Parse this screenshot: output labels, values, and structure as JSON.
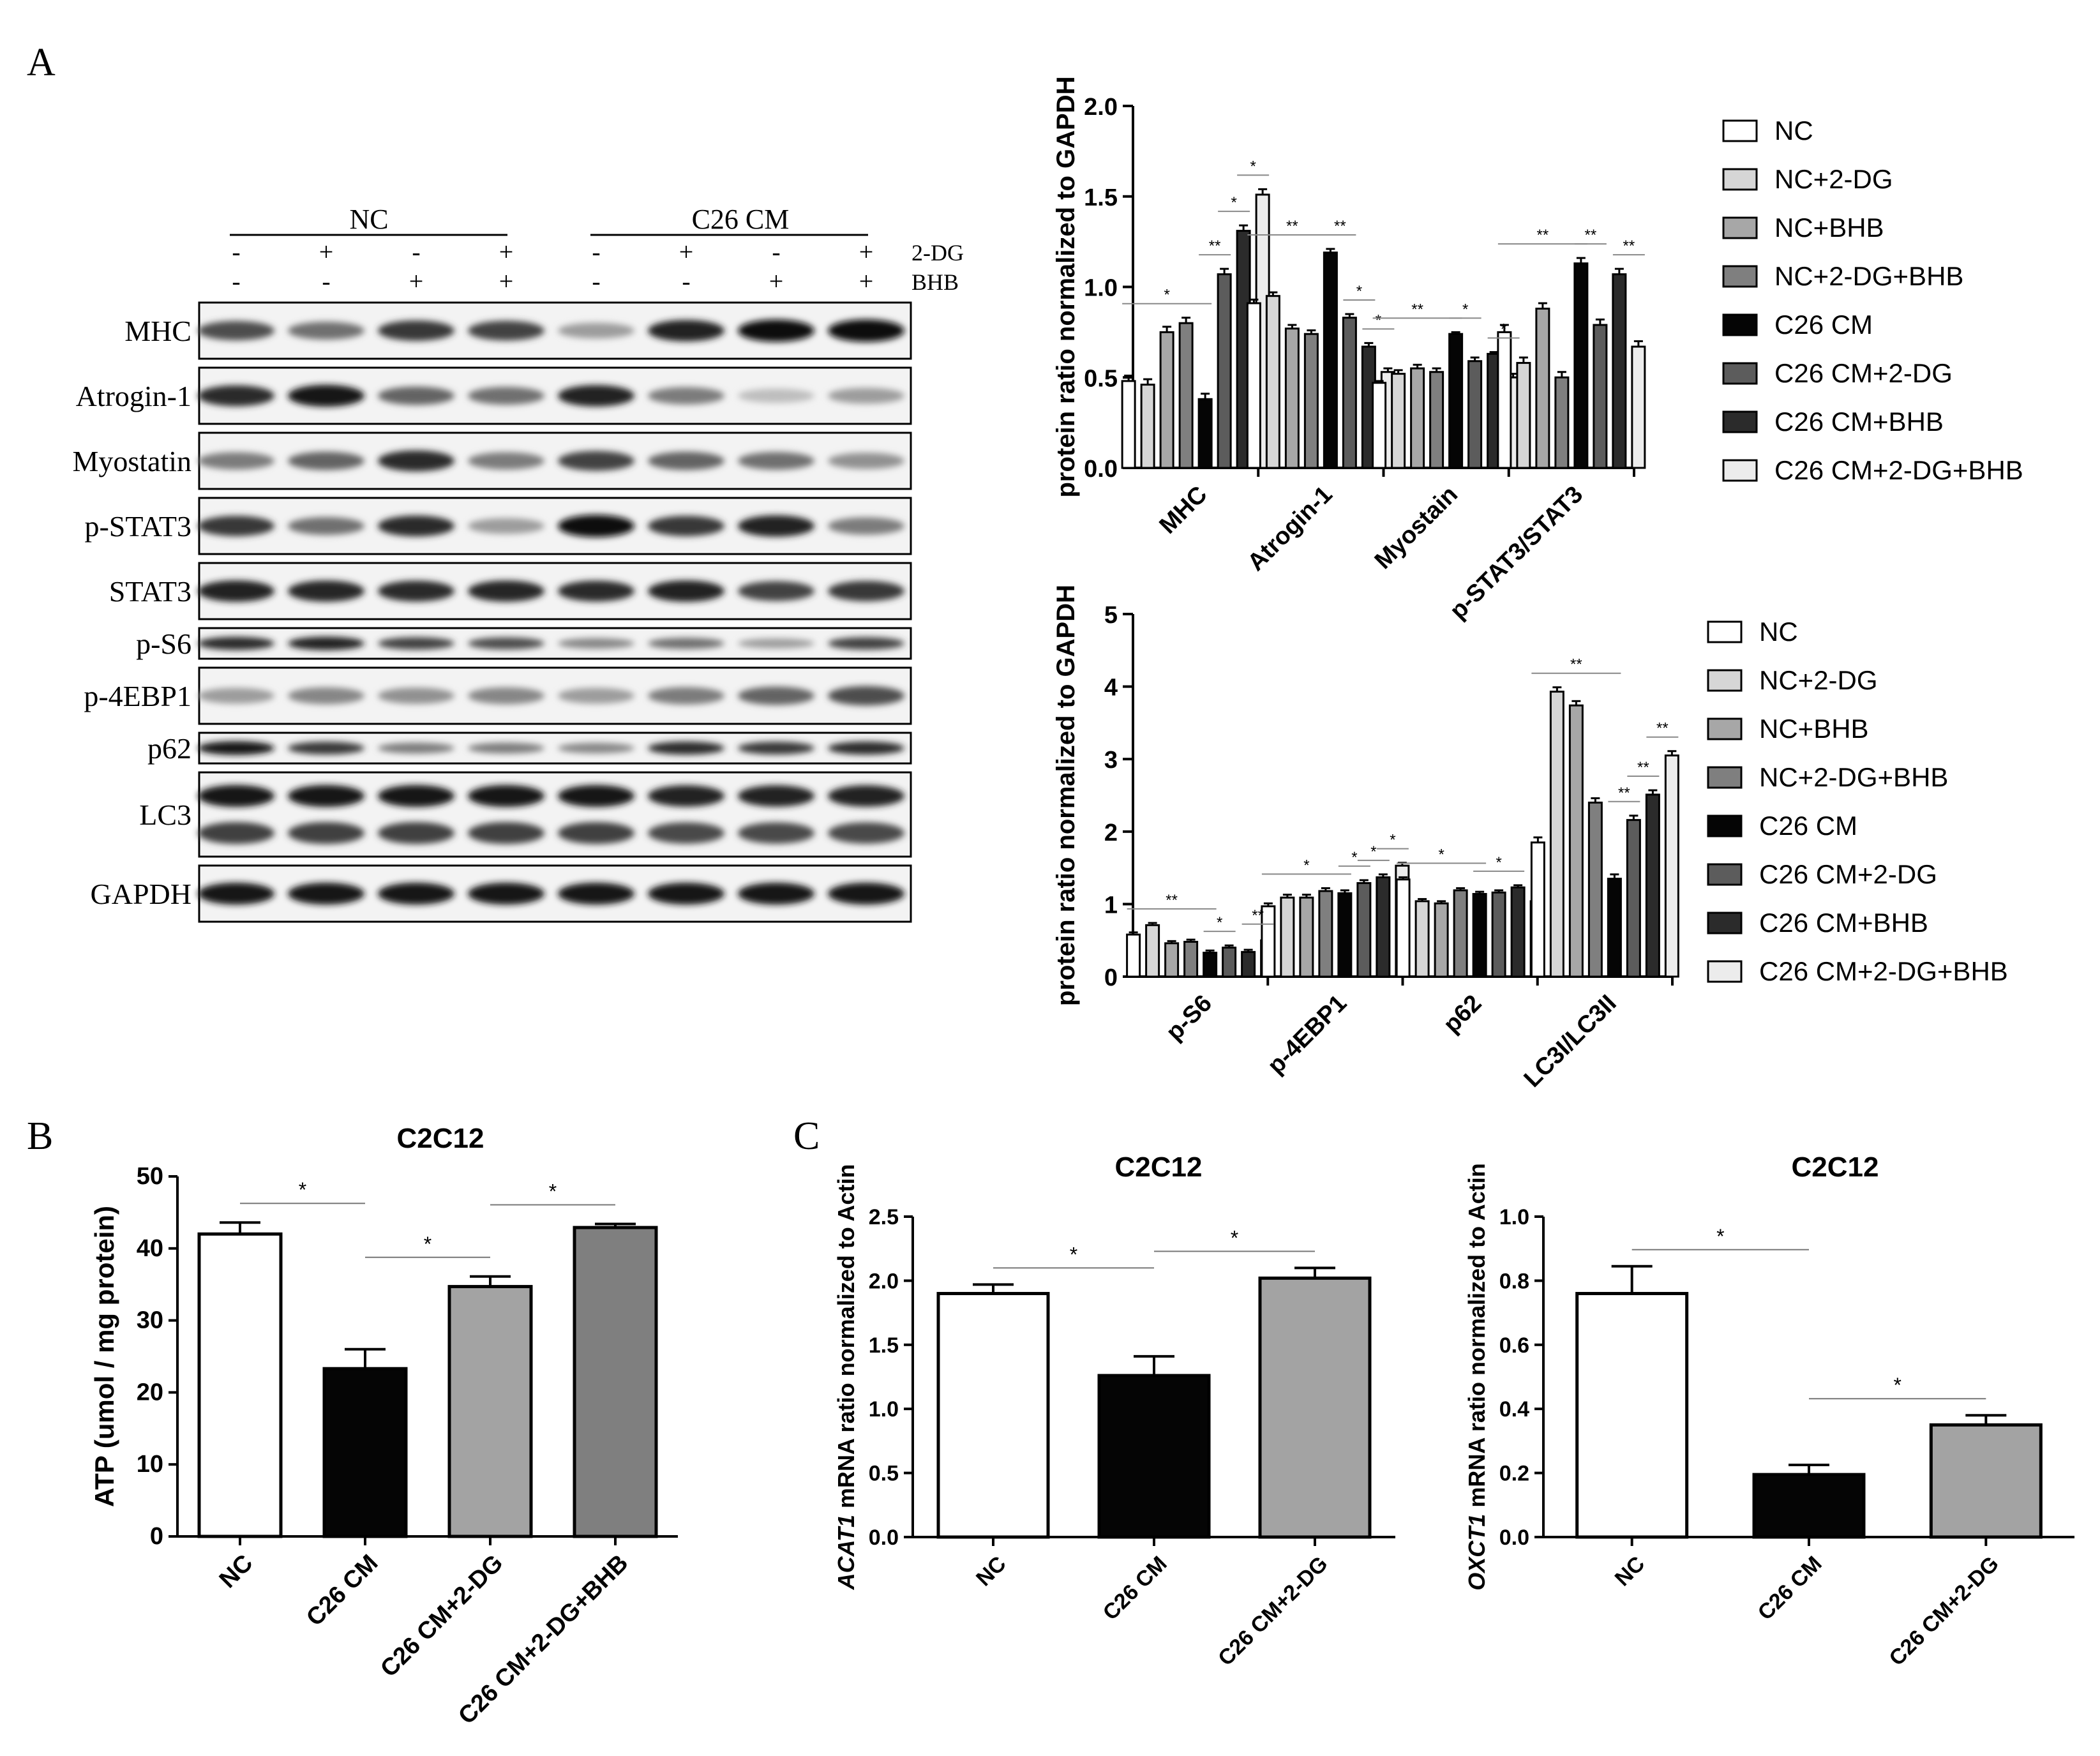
{
  "panels": {
    "a": "A",
    "b": "B",
    "c": "C"
  },
  "blot": {
    "groups": [
      "NC",
      "C26 CM"
    ],
    "treatments": [
      {
        "name": "2-DG",
        "signs": [
          "-",
          "+",
          "-",
          "+",
          "-",
          "+",
          "-",
          "+"
        ]
      },
      {
        "name": "BHB",
        "signs": [
          "-",
          "-",
          "+",
          "+",
          "-",
          "-",
          "+",
          "+"
        ]
      }
    ],
    "rows": [
      {
        "label": "MHC",
        "intensity": [
          0.7,
          0.55,
          0.8,
          0.75,
          0.35,
          0.9,
          0.98,
          1.0
        ],
        "height": 2
      },
      {
        "label": "Atrogin-1",
        "intensity": [
          0.85,
          0.95,
          0.6,
          0.55,
          0.9,
          0.5,
          0.2,
          0.35
        ],
        "height": 2
      },
      {
        "label": "Myostatin",
        "intensity": [
          0.5,
          0.6,
          0.85,
          0.5,
          0.75,
          0.6,
          0.55,
          0.4
        ],
        "height": 2
      },
      {
        "label": "p-STAT3",
        "intensity": [
          0.8,
          0.55,
          0.85,
          0.35,
          0.98,
          0.8,
          0.9,
          0.5
        ],
        "height": 2
      },
      {
        "label": "STAT3",
        "intensity": [
          0.9,
          0.88,
          0.85,
          0.88,
          0.85,
          0.9,
          0.75,
          0.8
        ],
        "height": 2
      },
      {
        "label": "p-S6",
        "intensity": [
          0.85,
          0.9,
          0.75,
          0.7,
          0.45,
          0.55,
          0.35,
          0.75
        ],
        "height": 1
      },
      {
        "label": "p-4EBP1",
        "intensity": [
          0.35,
          0.45,
          0.4,
          0.45,
          0.35,
          0.5,
          0.6,
          0.7
        ],
        "height": 2
      },
      {
        "label": "p62",
        "intensity": [
          0.95,
          0.8,
          0.5,
          0.5,
          0.45,
          0.85,
          0.8,
          0.85
        ],
        "height": 1
      },
      {
        "label": "LC3",
        "intensity": [
          0.95,
          0.95,
          0.95,
          0.95,
          0.95,
          0.9,
          0.9,
          0.9
        ],
        "height": 3
      },
      {
        "label": "GAPDH",
        "intensity": [
          0.95,
          0.95,
          0.95,
          0.95,
          0.95,
          0.95,
          0.95,
          0.95
        ],
        "height": 2
      }
    ]
  },
  "chart_data": [
    {
      "type": "bar",
      "panel": "A",
      "title": "",
      "ylabel": "protein ratio normalized to GAPDH",
      "ylim": [
        0,
        2.0
      ],
      "yticks": [
        "0.0",
        "0.5",
        "1.0",
        "1.5",
        "2.0"
      ],
      "categories": [
        "MHC",
        "Atrogin-1",
        "Myostain",
        "p-STAT3/STAT3"
      ],
      "series": [
        {
          "name": "NC",
          "color": "#ffffff",
          "values": [
            0.48,
            0.91,
            0.47,
            0.75
          ],
          "errors": [
            0.03,
            0.02,
            0.01,
            0.04
          ]
        },
        {
          "name": "NC+2-DG",
          "color": "#d6d6d6",
          "values": [
            0.46,
            0.95,
            0.52,
            0.58
          ],
          "errors": [
            0.03,
            0.02,
            0.02,
            0.03
          ]
        },
        {
          "name": "NC+BHB",
          "color": "#a7a7a7",
          "values": [
            0.75,
            0.77,
            0.55,
            0.88
          ],
          "errors": [
            0.03,
            0.02,
            0.02,
            0.03
          ]
        },
        {
          "name": "NC+2-DG+BHB",
          "color": "#7f7f7f",
          "values": [
            0.8,
            0.74,
            0.53,
            0.5
          ],
          "errors": [
            0.03,
            0.02,
            0.02,
            0.03
          ]
        },
        {
          "name": "C26 CM",
          "color": "#050505",
          "values": [
            0.38,
            1.19,
            0.74,
            1.13
          ],
          "errors": [
            0.03,
            0.02,
            0.01,
            0.03
          ]
        },
        {
          "name": "C26 CM+2-DG",
          "color": "#5c5c5c",
          "values": [
            1.07,
            0.83,
            0.59,
            0.79
          ],
          "errors": [
            0.03,
            0.02,
            0.02,
            0.03
          ]
        },
        {
          "name": "C26 CM+BHB",
          "color": "#2b2b2b",
          "values": [
            1.31,
            0.67,
            0.63,
            1.07
          ],
          "errors": [
            0.03,
            0.02,
            0.01,
            0.03
          ]
        },
        {
          "name": "C26 CM+2-DG+BHB",
          "color": "#ececec",
          "values": [
            1.51,
            0.53,
            0.5,
            0.67
          ],
          "errors": [
            0.03,
            0.02,
            0.02,
            0.03
          ]
        }
      ],
      "significance": [
        {
          "category": 0,
          "from": 0,
          "to": 4,
          "label": "*"
        },
        {
          "category": 0,
          "from": 4,
          "to": 5,
          "label": "**"
        },
        {
          "category": 0,
          "from": 5,
          "to": 6,
          "label": "*"
        },
        {
          "category": 0,
          "from": 6,
          "to": 7,
          "label": "*"
        },
        {
          "category": 1,
          "from": 0,
          "to": 4,
          "label": "**"
        },
        {
          "category": 1,
          "from": 4,
          "to": 5,
          "label": "**"
        },
        {
          "category": 1,
          "from": 5,
          "to": 6,
          "label": "*"
        },
        {
          "category": 1,
          "from": 6,
          "to": 7,
          "label": "*"
        },
        {
          "category": 2,
          "from": 0,
          "to": 4,
          "label": "**"
        },
        {
          "category": 2,
          "from": 4,
          "to": 5,
          "label": "*"
        },
        {
          "category": 2,
          "from": 6,
          "to": 7,
          "label": "*"
        },
        {
          "category": 3,
          "from": 0,
          "to": 4,
          "label": "**"
        },
        {
          "category": 3,
          "from": 4,
          "to": 5,
          "label": "**"
        },
        {
          "category": 3,
          "from": 6,
          "to": 7,
          "label": "**"
        }
      ]
    },
    {
      "type": "bar",
      "panel": "A",
      "title": "",
      "ylabel": "protein ratio normalized to GAPDH",
      "ylim": [
        0,
        5
      ],
      "yticks": [
        "0",
        "1",
        "2",
        "3",
        "4",
        "5"
      ],
      "categories": [
        "p-S6",
        "p-4EBP1",
        "p62",
        "LC3I/LC3II"
      ],
      "series": [
        {
          "name": "NC",
          "color": "#ffffff",
          "values": [
            0.58,
            0.97,
            1.34,
            1.85
          ],
          "errors": [
            0.03,
            0.04,
            0.03,
            0.07
          ]
        },
        {
          "name": "NC+2-DG",
          "color": "#d6d6d6",
          "values": [
            0.71,
            1.09,
            1.04,
            3.93
          ],
          "errors": [
            0.03,
            0.04,
            0.03,
            0.06
          ]
        },
        {
          "name": "NC+BHB",
          "color": "#a7a7a7",
          "values": [
            0.46,
            1.09,
            1.01,
            3.74
          ],
          "errors": [
            0.03,
            0.04,
            0.03,
            0.06
          ]
        },
        {
          "name": "NC+2-DG+BHB",
          "color": "#7f7f7f",
          "values": [
            0.48,
            1.18,
            1.19,
            2.4
          ],
          "errors": [
            0.03,
            0.04,
            0.03,
            0.06
          ]
        },
        {
          "name": "C26 CM",
          "color": "#050505",
          "values": [
            0.33,
            1.15,
            1.14,
            1.35
          ],
          "errors": [
            0.03,
            0.04,
            0.03,
            0.06
          ]
        },
        {
          "name": "C26 CM+2-DG",
          "color": "#5c5c5c",
          "values": [
            0.4,
            1.29,
            1.16,
            2.16
          ],
          "errors": [
            0.03,
            0.04,
            0.03,
            0.06
          ]
        },
        {
          "name": "C26 CM+BHB",
          "color": "#2b2b2b",
          "values": [
            0.34,
            1.37,
            1.23,
            2.51
          ],
          "errors": [
            0.03,
            0.04,
            0.03,
            0.06
          ]
        },
        {
          "name": "C26 CM+2-DG+BHB",
          "color": "#ececec",
          "values": [
            0.5,
            1.53,
            1.04,
            3.05
          ],
          "errors": [
            0.03,
            0.04,
            0.03,
            0.06
          ]
        }
      ],
      "significance": [
        {
          "category": 0,
          "from": 0,
          "to": 4,
          "label": "**"
        },
        {
          "category": 0,
          "from": 4,
          "to": 5,
          "label": "*"
        },
        {
          "category": 0,
          "from": 6,
          "to": 7,
          "label": "**"
        },
        {
          "category": 1,
          "from": 0,
          "to": 4,
          "label": "*"
        },
        {
          "category": 1,
          "from": 4,
          "to": 5,
          "label": "*"
        },
        {
          "category": 1,
          "from": 5,
          "to": 6,
          "label": "*"
        },
        {
          "category": 1,
          "from": 6,
          "to": 7,
          "label": "*"
        },
        {
          "category": 2,
          "from": 0,
          "to": 4,
          "label": "*"
        },
        {
          "category": 2,
          "from": 4,
          "to": 6,
          "label": "*"
        },
        {
          "category": 3,
          "from": 0,
          "to": 4,
          "label": "**"
        },
        {
          "category": 3,
          "from": 4,
          "to": 5,
          "label": "**"
        },
        {
          "category": 3,
          "from": 5,
          "to": 6,
          "label": "**"
        },
        {
          "category": 3,
          "from": 6,
          "to": 7,
          "label": "**"
        }
      ]
    },
    {
      "type": "bar",
      "panel": "B",
      "title": "C2C12",
      "ylabel": "ATP (umol / mg protein)",
      "ylim": [
        0,
        50
      ],
      "yticks": [
        "0",
        "10",
        "20",
        "30",
        "40",
        "50"
      ],
      "categories": [
        "NC",
        "C26 CM",
        "C26 CM+2-DG",
        "C26 CM+2-DG+BHB"
      ],
      "values": [
        42,
        23.3,
        34.7,
        42.9
      ],
      "errors": [
        1.6,
        2.7,
        1.4,
        0.5
      ],
      "colors": [
        "#ffffff",
        "#050505",
        "#a3a3a3",
        "#7f7f7f"
      ],
      "significance": [
        {
          "from": 0,
          "to": 1,
          "label": "*"
        },
        {
          "from": 1,
          "to": 2,
          "label": "*"
        },
        {
          "from": 2,
          "to": 3,
          "label": "*"
        }
      ]
    },
    {
      "type": "bar",
      "panel": "C",
      "title": "C2C12",
      "ylabel_italic": "ACAT1",
      "ylabel": " mRNA ratio normalized to Actin",
      "ylim": [
        0,
        2.5
      ],
      "yticks": [
        "0.0",
        "0.5",
        "1.0",
        "1.5",
        "2.0",
        "2.5"
      ],
      "categories": [
        "NC",
        "C26 CM",
        "C26 CM+2-DG"
      ],
      "values": [
        1.9,
        1.26,
        2.02
      ],
      "errors": [
        0.07,
        0.15,
        0.08
      ],
      "colors": [
        "#ffffff",
        "#050505",
        "#a3a3a3"
      ],
      "significance": [
        {
          "from": 0,
          "to": 1,
          "label": "*"
        },
        {
          "from": 1,
          "to": 2,
          "label": "*"
        }
      ]
    },
    {
      "type": "bar",
      "panel": "C",
      "title": "C2C12",
      "ylabel_italic": "OXCT1",
      "ylabel": " mRNA ratio normalized to Actin",
      "ylim": [
        0,
        1.0
      ],
      "yticks": [
        "0.0",
        "0.2",
        "0.4",
        "0.6",
        "0.8",
        "1.0"
      ],
      "categories": [
        "NC",
        "C26 CM",
        "C26 CM+2-DG"
      ],
      "values": [
        0.76,
        0.195,
        0.35
      ],
      "errors": [
        0.085,
        0.03,
        0.03
      ],
      "colors": [
        "#ffffff",
        "#050505",
        "#a3a3a3"
      ],
      "significance": [
        {
          "from": 0,
          "to": 1,
          "label": "*"
        },
        {
          "from": 1,
          "to": 2,
          "label": "*"
        }
      ]
    }
  ]
}
